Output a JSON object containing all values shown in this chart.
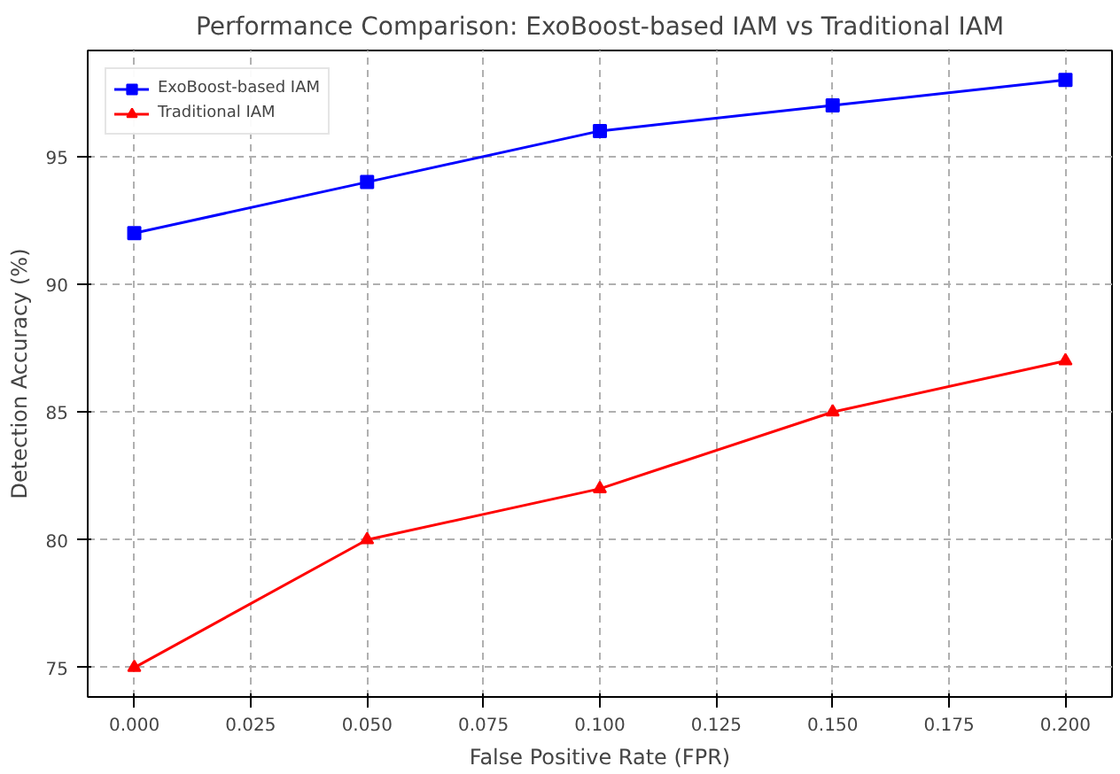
{
  "chart_data": {
    "type": "line",
    "title": "Performance Comparison: ExoBoost-based IAM vs Traditional IAM",
    "xlabel": "False Positive Rate (FPR)",
    "ylabel": "Detection Accuracy (%)",
    "x": [
      0.0,
      0.05,
      0.1,
      0.15,
      0.2
    ],
    "series": [
      {
        "name": "ExoBoost-based IAM",
        "color": "#0000ff",
        "marker": "square",
        "values": [
          92,
          94,
          96,
          97,
          98
        ]
      },
      {
        "name": "Traditional IAM",
        "color": "#ff0000",
        "marker": "triangle",
        "values": [
          75,
          80,
          82,
          85,
          87
        ]
      }
    ],
    "xlim": [
      -0.01,
      0.21
    ],
    "xticks": [
      {
        "value": 0,
        "label": "0.000"
      },
      {
        "value": 0.025,
        "label": "0.025"
      },
      {
        "value": 0.05,
        "label": "0.050"
      },
      {
        "value": 0.075,
        "label": "0.075"
      },
      {
        "value": 0.1,
        "label": "0.100"
      },
      {
        "value": 0.125,
        "label": "0.125"
      },
      {
        "value": 0.15,
        "label": "0.150"
      },
      {
        "value": 0.175,
        "label": "0.175"
      },
      {
        "value": 0.2,
        "label": "0.200"
      }
    ],
    "ylim": [
      73.85,
      99.15
    ],
    "yticks": [
      75,
      80,
      85,
      90,
      95
    ],
    "grid": true,
    "legend": "top left",
    "line_style": "solid"
  }
}
